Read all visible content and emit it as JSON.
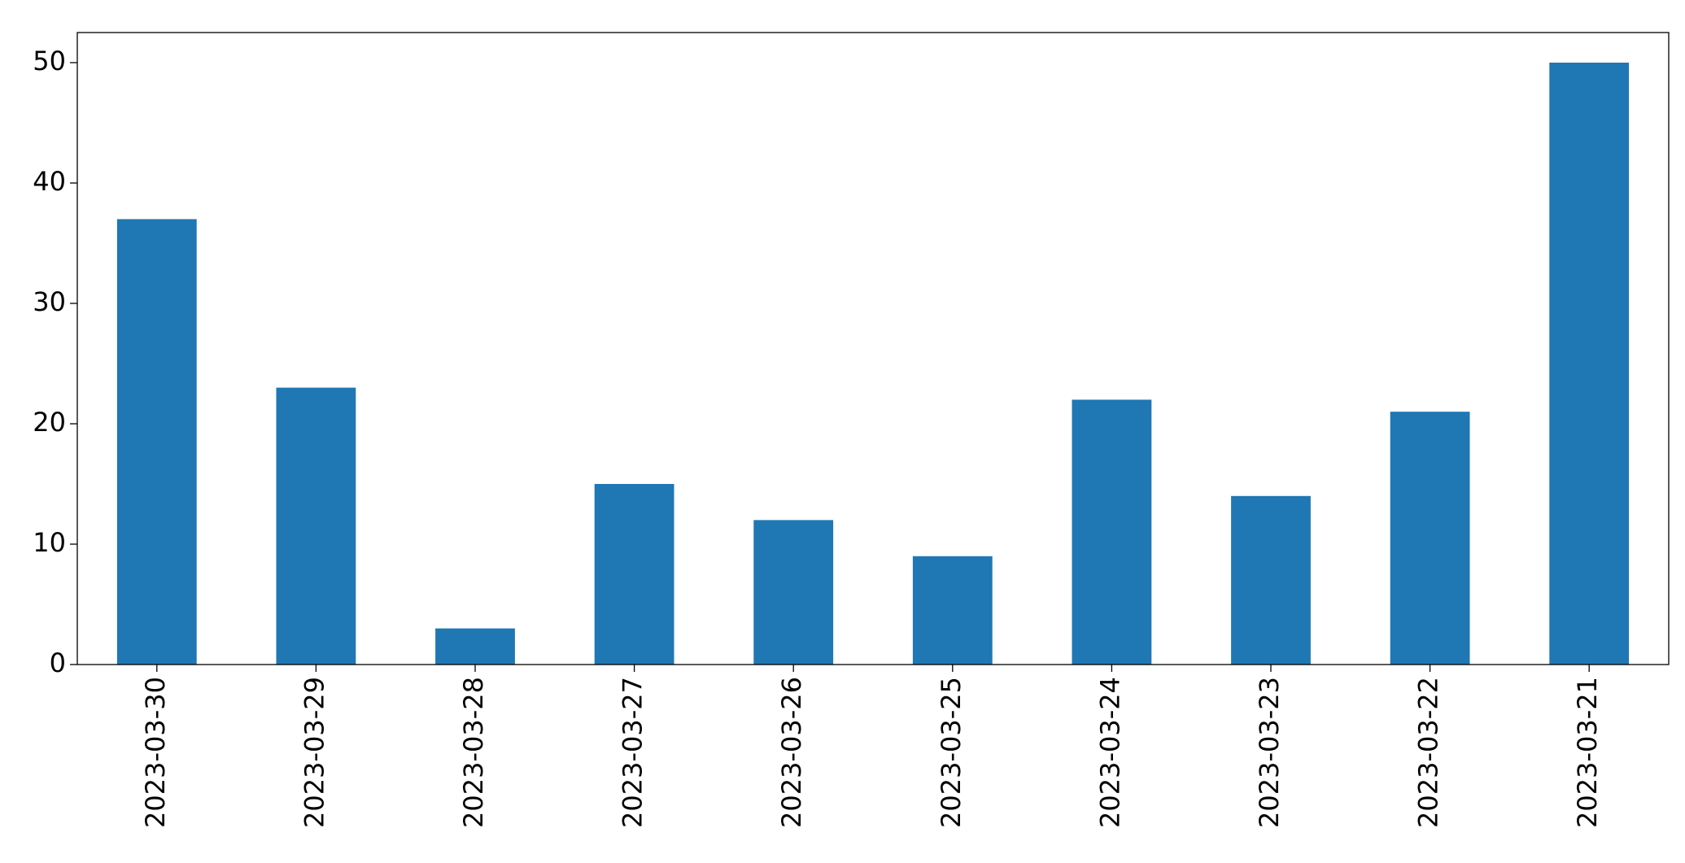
{
  "chart_data": {
    "type": "bar",
    "categories": [
      "2023-03-30",
      "2023-03-29",
      "2023-03-28",
      "2023-03-27",
      "2023-03-26",
      "2023-03-25",
      "2023-03-24",
      "2023-03-23",
      "2023-03-22",
      "2023-03-21"
    ],
    "values": [
      37,
      23,
      3,
      15,
      12,
      9,
      22,
      14,
      21,
      50
    ],
    "color": "#1f77b4",
    "ylim": [
      0,
      52.5
    ],
    "yticks": [
      0,
      10,
      20,
      30,
      40,
      50
    ],
    "grid": false
  }
}
